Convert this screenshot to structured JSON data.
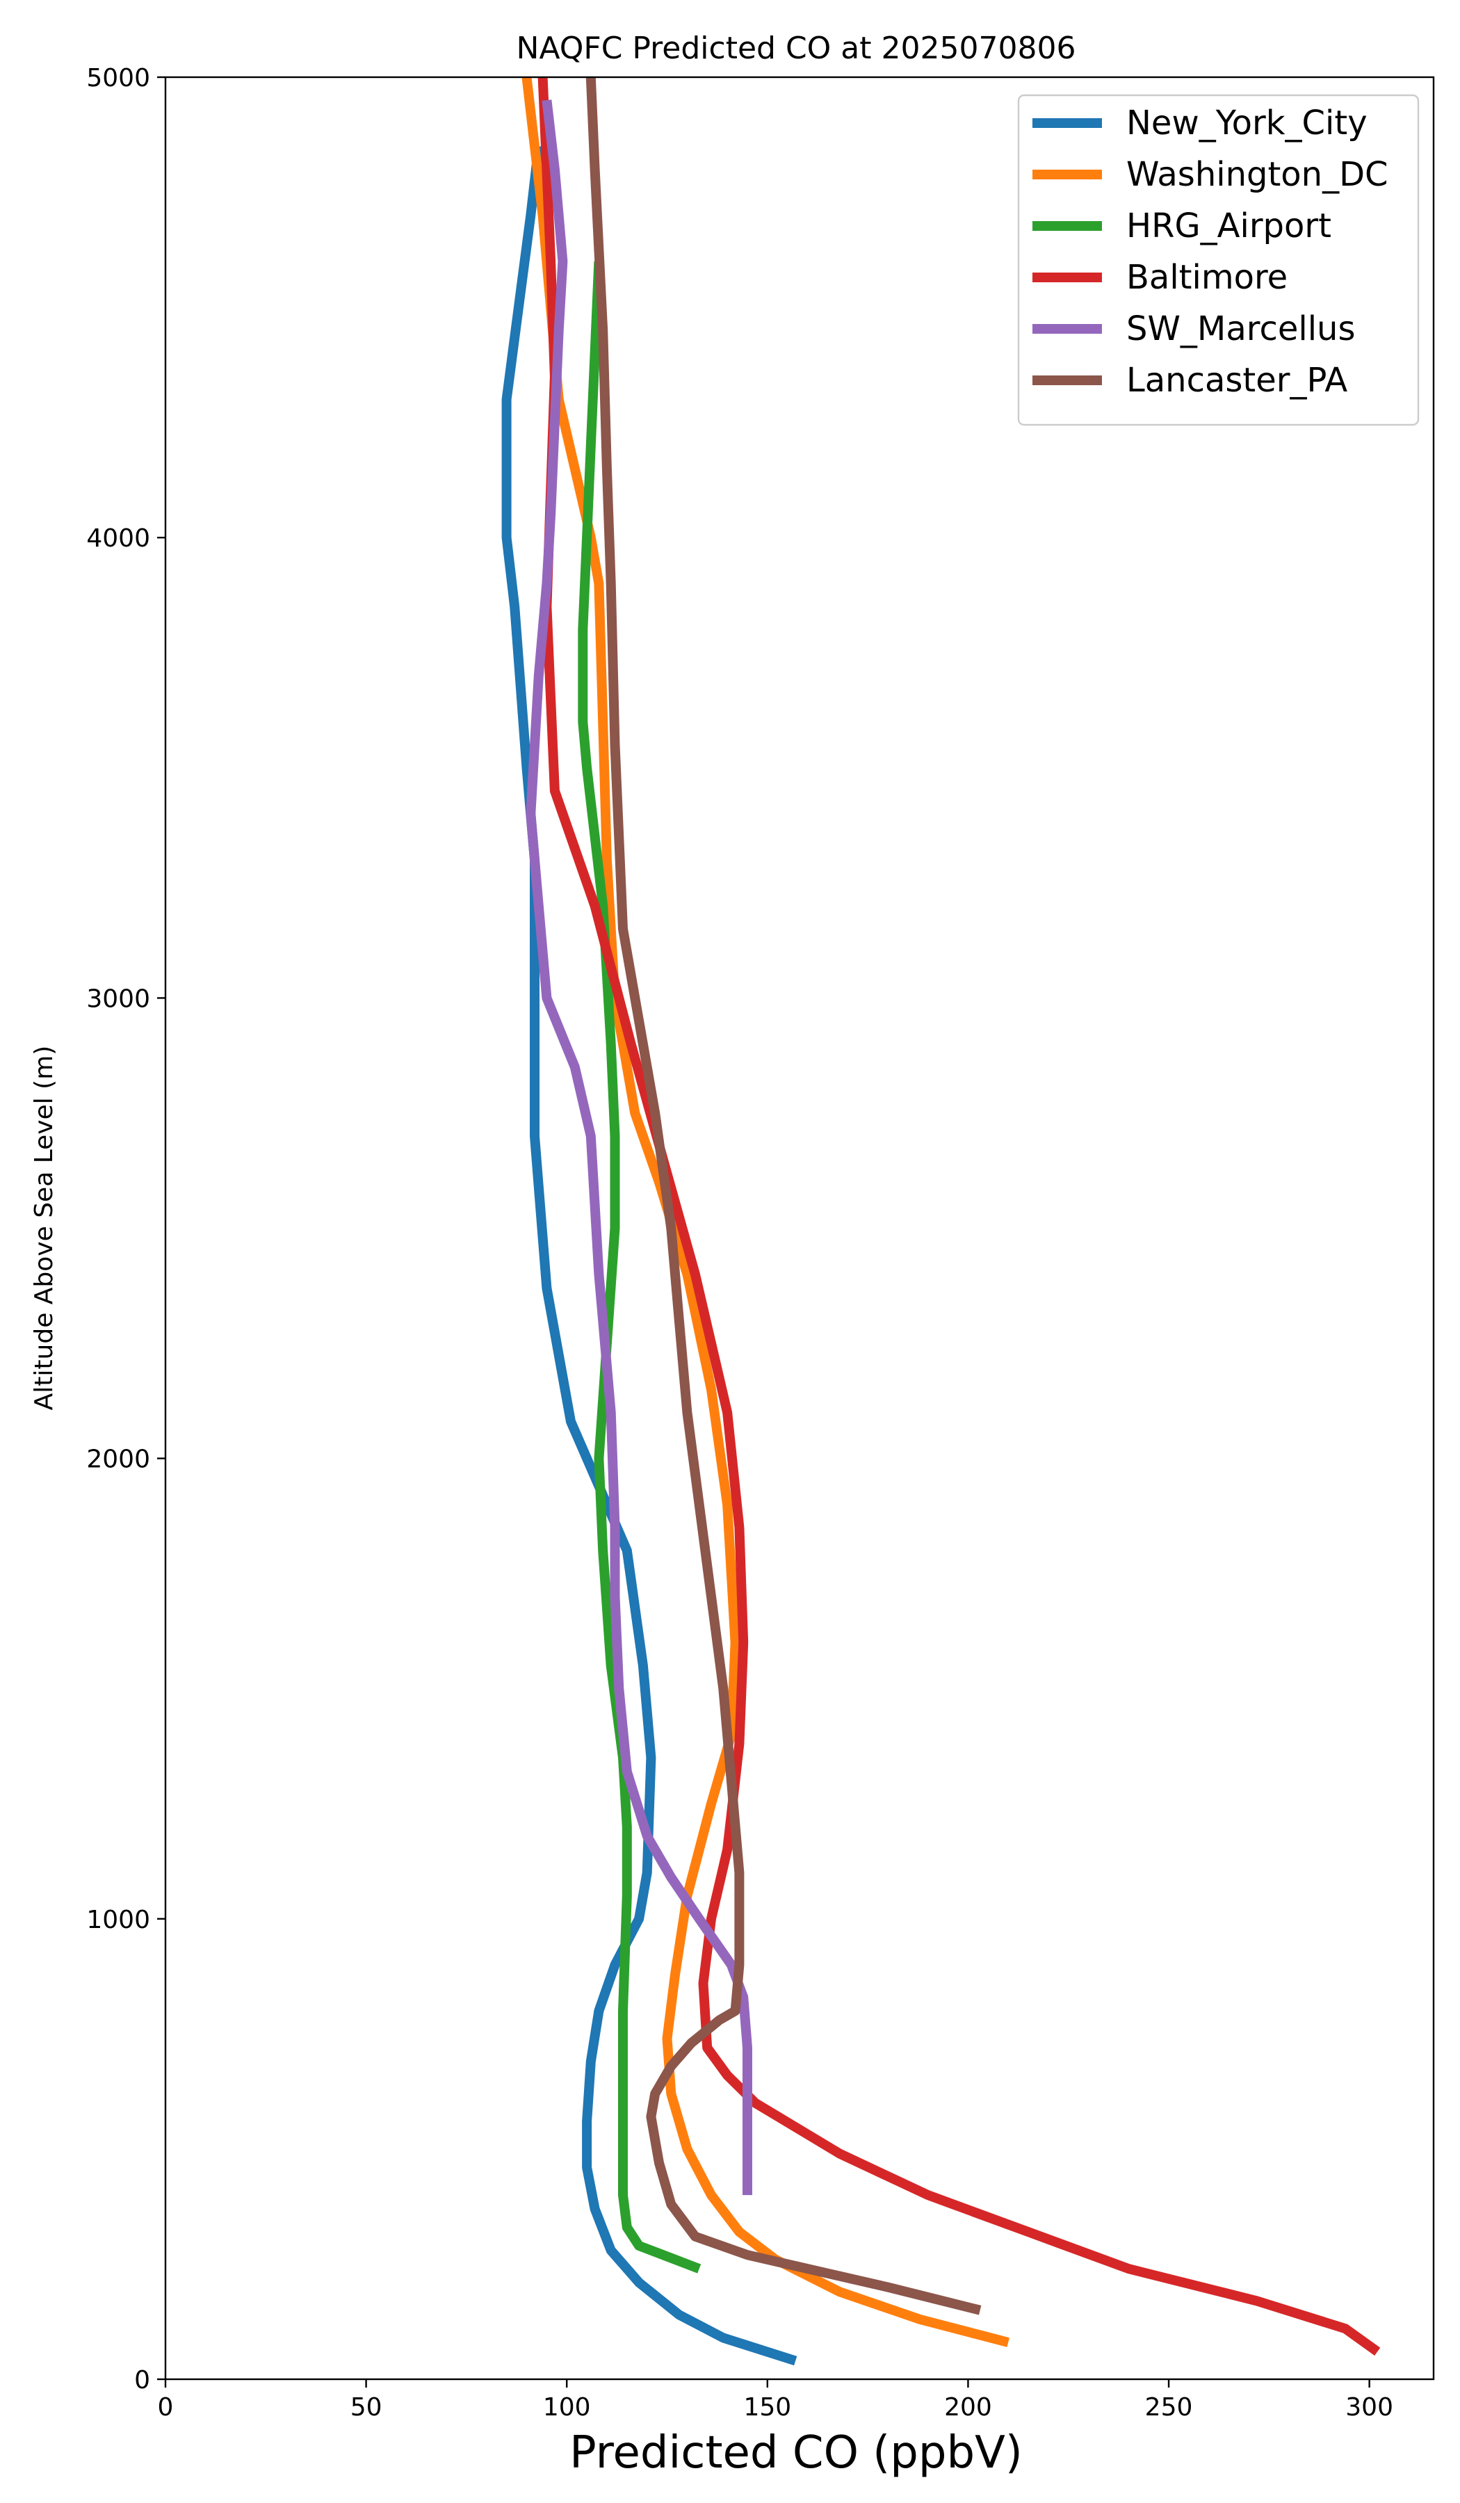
{
  "chart_data": {
    "type": "line",
    "title": "NAQFC Predicted CO at 2025070806",
    "xlabel": "Predicted CO (ppbV)",
    "ylabel": "Altitude Above Sea Level (m)",
    "xlim": [
      0,
      316
    ],
    "ylim": [
      0,
      5000
    ],
    "xticks": [
      0,
      50,
      100,
      150,
      200,
      250,
      300
    ],
    "yticks": [
      0,
      1000,
      2000,
      3000,
      4000,
      5000
    ],
    "grid": false,
    "legend": "top-right",
    "series": [
      {
        "name": "New_York_City",
        "color": "#1f77b4",
        "x": [
          157,
          139,
          128,
          118,
          111,
          107,
          105,
          105,
          106,
          108,
          112,
          118,
          120,
          121,
          119,
          115,
          110,
          101,
          95,
          92,
          92,
          92,
          90,
          87,
          85,
          85,
          88,
          91,
          93
        ],
        "y": [
          40,
          90,
          140,
          210,
          280,
          370,
          460,
          560,
          690,
          800,
          900,
          1000,
          1100,
          1350,
          1550,
          1800,
          1900,
          2080,
          2370,
          2700,
          3050,
          3300,
          3500,
          3850,
          4000,
          4300,
          4500,
          4700,
          4850
        ]
      },
      {
        "name": "Washington_DC",
        "color": "#ff7f0e",
        "x": [
          210,
          188,
          168,
          152,
          143,
          136,
          130,
          126,
          125,
          127,
          130,
          136,
          141,
          142,
          140,
          136,
          130,
          123,
          117,
          112,
          110,
          109,
          108,
          106,
          102,
          98,
          96,
          94,
          92,
          90
        ],
        "y": [
          80,
          130,
          190,
          260,
          320,
          400,
          500,
          620,
          740,
          880,
          1050,
          1250,
          1400,
          1600,
          1900,
          2150,
          2400,
          2600,
          2750,
          3000,
          3300,
          3600,
          3900,
          4000,
          4150,
          4300,
          4500,
          4700,
          4850,
          5000
        ]
      },
      {
        "name": "HRG_Airport",
        "color": "#2ca02c",
        "x": [
          133,
          124,
          118,
          115,
          114,
          114,
          114,
          115,
          115,
          114,
          111,
          109,
          108,
          110,
          112,
          112,
          111,
          109,
          105,
          104,
          104,
          105,
          106,
          107,
          108
        ],
        "y": [
          240,
          270,
          290,
          330,
          400,
          550,
          800,
          1050,
          1200,
          1350,
          1550,
          1800,
          2000,
          2250,
          2500,
          2700,
          2900,
          3200,
          3500,
          3600,
          3800,
          4000,
          4200,
          4400,
          4600
        ]
      },
      {
        "name": "Baltimore",
        "color": "#d62728",
        "x": [
          302,
          294,
          272,
          240,
          215,
          190,
          168,
          147,
          140,
          135,
          134,
          136,
          140,
          143,
          144,
          143,
          140,
          132,
          124,
          116,
          107,
          97,
          96,
          95,
          96,
          97,
          96,
          94
        ],
        "y": [
          60,
          110,
          170,
          240,
          320,
          400,
          490,
          600,
          660,
          720,
          860,
          1000,
          1150,
          1380,
          1600,
          1850,
          2100,
          2400,
          2650,
          2900,
          3200,
          3450,
          3650,
          3850,
          4100,
          4350,
          4600,
          5000
        ]
      },
      {
        "name": "SW_Marcellus",
        "color": "#9467bd",
        "x": [
          145,
          145,
          145,
          144,
          141,
          133,
          126,
          120,
          115,
          113,
          112,
          112,
          111,
          108,
          106,
          102,
          95,
          93,
          91,
          93,
          95,
          96,
          97,
          98,
          99,
          97,
          95
        ],
        "y": [
          400,
          560,
          720,
          830,
          900,
          1000,
          1090,
          1180,
          1320,
          1500,
          1700,
          1850,
          2100,
          2400,
          2700,
          2850,
          3000,
          3200,
          3400,
          3700,
          3900,
          4050,
          4250,
          4450,
          4600,
          4800,
          4950
        ]
      },
      {
        "name": "Lancaster_PA",
        "color": "#8c564b",
        "x": [
          203,
          180,
          160,
          145,
          132,
          126,
          123,
          121,
          122,
          126,
          131,
          138,
          142,
          143,
          143,
          141,
          139,
          136,
          133,
          130,
          128,
          126,
          122,
          118,
          114,
          112,
          111,
          110,
          109,
          107,
          106
        ],
        "y": [
          150,
          200,
          240,
          270,
          310,
          380,
          470,
          570,
          620,
          680,
          730,
          780,
          800,
          900,
          1100,
          1300,
          1500,
          1700,
          1900,
          2100,
          2300,
          2500,
          2750,
          2950,
          3150,
          3550,
          3900,
          4150,
          4450,
          4800,
          5000
        ]
      }
    ]
  }
}
